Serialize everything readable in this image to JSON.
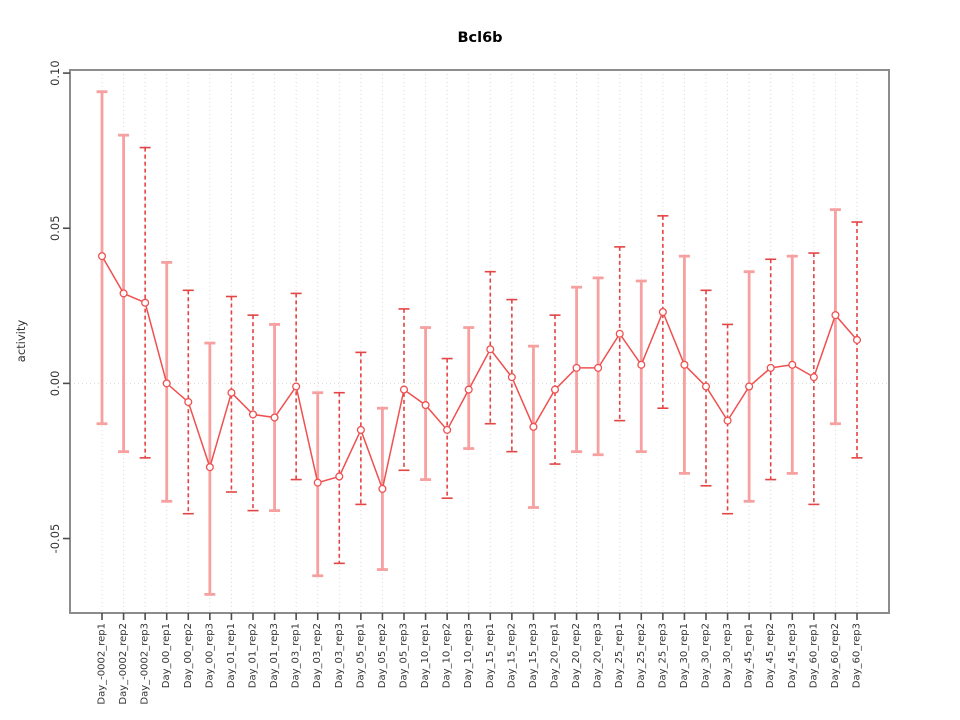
{
  "chart_data": {
    "type": "line",
    "subtype": "points-with-error-bars",
    "title": "Bcl6b",
    "xlabel": "",
    "ylabel": "activity",
    "ylim": [
      -0.074,
      0.101
    ],
    "yticks": [
      0.1,
      0.05,
      0.0,
      -0.05
    ],
    "ytick_labels": [
      "0.10",
      "0.05",
      "0.00",
      "-0.05"
    ],
    "zero_reference_line": 0.0,
    "grid": "vertical-dotted-per-category",
    "legend": "none",
    "categories": [
      "Day_-0002_rep1",
      "Day_-0002_rep2",
      "Day_-0002_rep3",
      "Day_00_rep1",
      "Day_00_rep2",
      "Day_00_rep3",
      "Day_01_rep1",
      "Day_01_rep2",
      "Day_01_rep3",
      "Day_03_rep1",
      "Day_03_rep2",
      "Day_03_rep3",
      "Day_05_rep1",
      "Day_05_rep2",
      "Day_05_rep3",
      "Day_10_rep1",
      "Day_10_rep2",
      "Day_10_rep3",
      "Day_15_rep1",
      "Day_15_rep2",
      "Day_15_rep3",
      "Day_20_rep1",
      "Day_20_rep2",
      "Day_20_rep3",
      "Day_25_rep1",
      "Day_25_rep2",
      "Day_25_rep3",
      "Day_30_rep1",
      "Day_30_rep2",
      "Day_30_rep3",
      "Day_45_rep1",
      "Day_45_rep2",
      "Day_45_rep3",
      "Day_60_rep1",
      "Day_60_rep2",
      "Day_60_rep3"
    ],
    "series": [
      {
        "name": "activity",
        "means": [
          0.041,
          0.029,
          0.026,
          0.0,
          -0.006,
          -0.027,
          -0.003,
          -0.01,
          -0.011,
          -0.001,
          -0.032,
          -0.03,
          -0.015,
          -0.034,
          -0.002,
          -0.007,
          -0.015,
          -0.002,
          0.011,
          0.002,
          -0.014,
          -0.002,
          0.005,
          0.005,
          0.016,
          0.006,
          0.023,
          0.006,
          -0.001,
          -0.012,
          -0.001,
          0.005,
          0.006,
          0.002,
          0.022,
          0.014
        ],
        "lower": [
          -0.013,
          -0.022,
          -0.024,
          -0.038,
          -0.042,
          -0.068,
          -0.035,
          -0.041,
          -0.041,
          -0.031,
          -0.062,
          -0.058,
          -0.039,
          -0.06,
          -0.028,
          -0.031,
          -0.037,
          -0.021,
          -0.013,
          -0.022,
          -0.04,
          -0.026,
          -0.022,
          -0.023,
          -0.012,
          -0.022,
          -0.008,
          -0.029,
          -0.033,
          -0.042,
          -0.038,
          -0.031,
          -0.029,
          -0.039,
          -0.013,
          -0.024
        ],
        "upper": [
          0.094,
          0.08,
          0.076,
          0.039,
          0.03,
          0.013,
          0.028,
          0.022,
          0.019,
          0.029,
          -0.003,
          -0.003,
          0.01,
          -0.008,
          0.024,
          0.018,
          0.008,
          0.018,
          0.036,
          0.027,
          0.012,
          0.022,
          0.031,
          0.034,
          0.044,
          0.033,
          0.054,
          0.041,
          0.03,
          0.019,
          0.036,
          0.04,
          0.041,
          0.042,
          0.056,
          0.052
        ],
        "bar_styles": [
          "solid",
          "solid",
          "dashed",
          "solid",
          "dashed",
          "solid",
          "dashed",
          "dashed",
          "solid",
          "dashed",
          "solid",
          "dashed",
          "dashed",
          "solid",
          "dashed",
          "solid",
          "dashed",
          "solid",
          "dashed",
          "dashed",
          "solid",
          "dashed",
          "solid",
          "solid",
          "dashed",
          "solid",
          "dashed",
          "solid",
          "dashed",
          "dashed",
          "solid",
          "dashed",
          "solid",
          "dashed",
          "solid",
          "dashed"
        ]
      }
    ],
    "colors": {
      "point_stroke": "#ef5050",
      "point_fill": "#ffffff",
      "mean_line": "#ef5050",
      "error_bar_solid": "#f7a0a0",
      "error_bar_dashed": "#e34444",
      "gridline": "#d9d9d9",
      "zero_line": "#d9d9d9",
      "box_border": "#8c8c8c",
      "tick": "#4d4d4d",
      "tick_label": "#333333",
      "title": "#000000",
      "background": "#ffffff"
    }
  }
}
